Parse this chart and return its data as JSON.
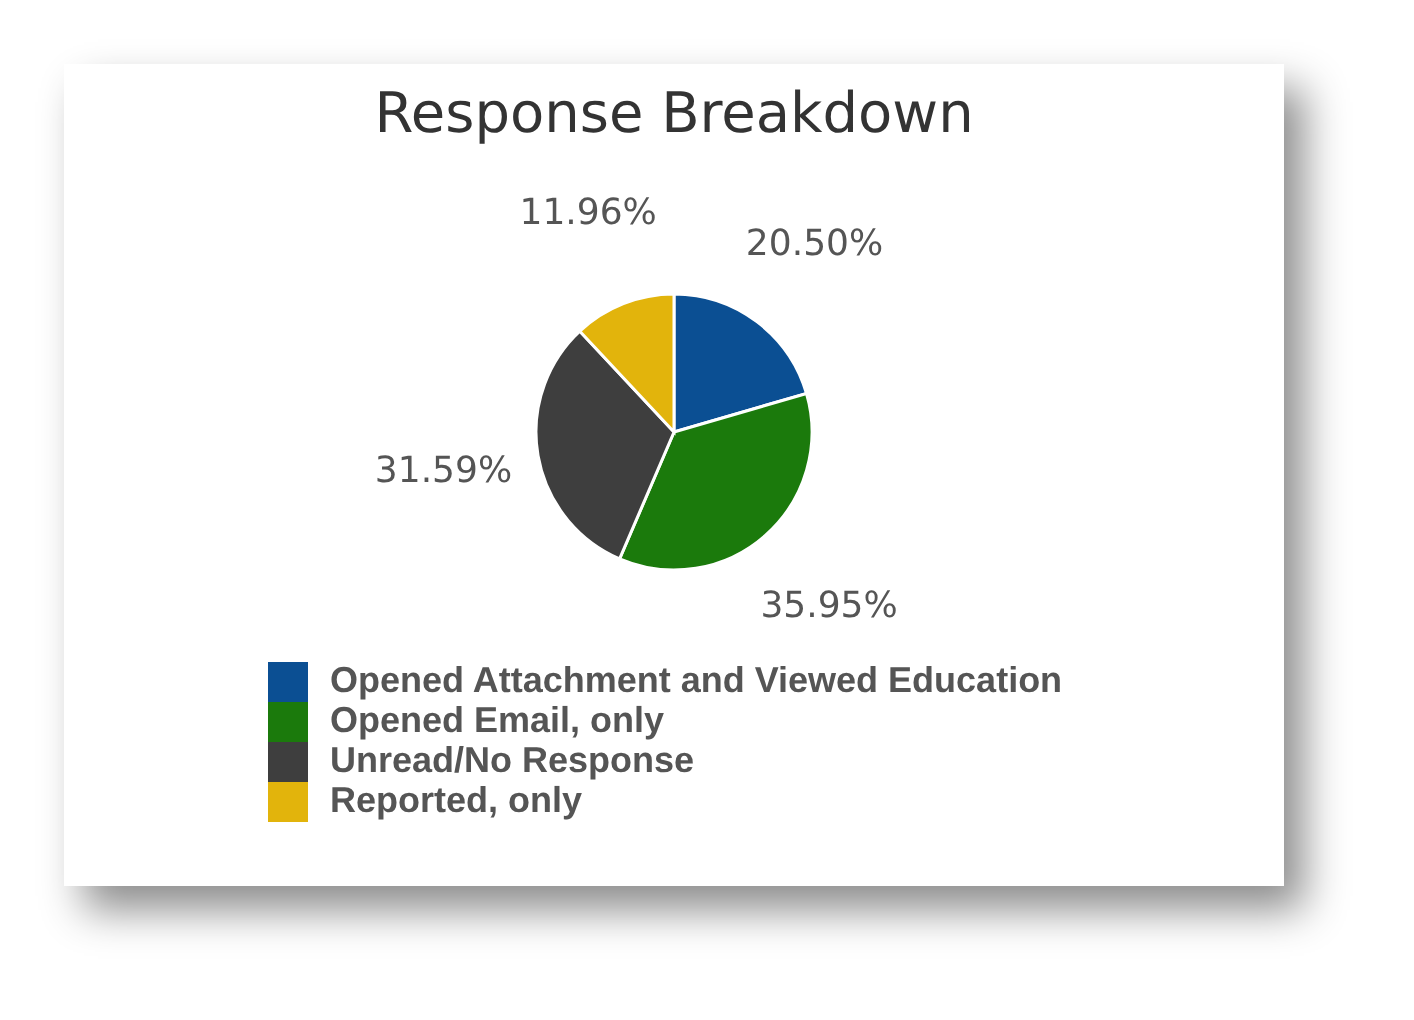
{
  "chart_data": {
    "type": "pie",
    "title": "Response Breakdown",
    "categories": [
      "Opened Attachment and Viewed Education",
      "Opened Email, only",
      "Unread/No Response",
      "Reported, only"
    ],
    "values": [
      20.5,
      35.95,
      31.59,
      11.96
    ],
    "colors": [
      "#0b4f93",
      "#1b7a0c",
      "#3e3e3e",
      "#e2b40c"
    ],
    "value_labels": [
      "20.50%",
      "35.95%",
      "31.59%",
      "11.96%"
    ],
    "legend": "bottom"
  }
}
